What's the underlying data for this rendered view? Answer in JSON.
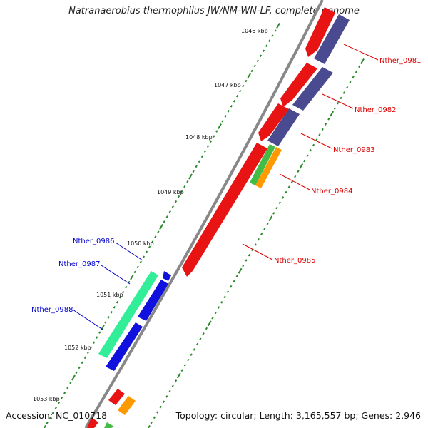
{
  "title": "Natranaerobius thermophilus JW/NM-WN-LF, complete genome",
  "footer": {
    "accession": "Accession: NC_010718",
    "summary": "Topology: circular; Length: 3,165,557 bp; Genes: 2,946"
  },
  "ticks": [
    "1046 kbp",
    "1047 kbp",
    "1048 kbp",
    "1049 kbp",
    "1050 kbp",
    "1051 kbp",
    "1052 kbp",
    "1053 kbp"
  ],
  "genes": [
    {
      "name": "Nther_0981",
      "color": "#dd0000"
    },
    {
      "name": "Nther_0982",
      "color": "#dd0000"
    },
    {
      "name": "Nther_0983",
      "color": "#dd0000"
    },
    {
      "name": "Nther_0984",
      "color": "#dd0000"
    },
    {
      "name": "Nther_0985",
      "color": "#dd0000"
    },
    {
      "name": "Nther_0986",
      "color": "#0000cc"
    },
    {
      "name": "Nther_0987",
      "color": "#0000cc"
    },
    {
      "name": "Nther_0988",
      "color": "#0000cc"
    }
  ],
  "colors": {
    "cds_forward": "#ee1111",
    "cds_reverse": "#1111dd",
    "track_purple": "#4a4a90",
    "rna_green": "#44bb44",
    "rna_orange": "#ff9900",
    "teal": "#33ee99",
    "dots": "#2a8a2a",
    "backbone": "#888888"
  }
}
